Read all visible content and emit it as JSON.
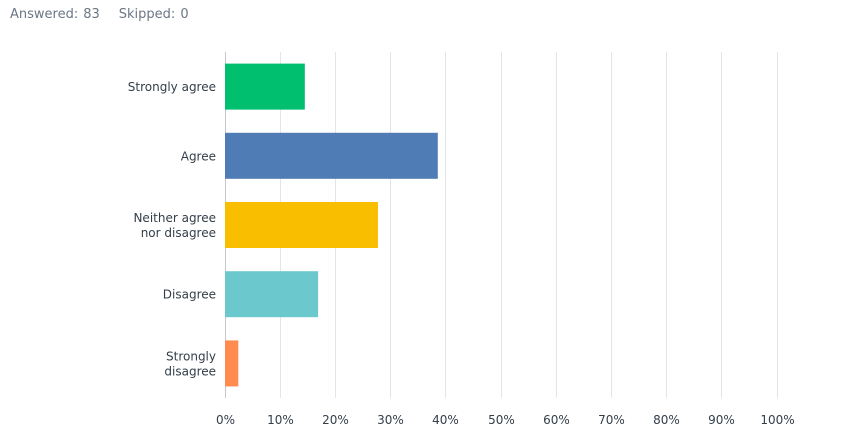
{
  "header": {
    "answered_label": "Answered:",
    "answered_count": "83",
    "skipped_label": "Skipped:",
    "skipped_count": "0"
  },
  "chart_data": {
    "type": "bar",
    "orientation": "horizontal",
    "title": "",
    "xlabel": "",
    "ylabel": "",
    "categories": [
      [
        "Strongly agree"
      ],
      [
        "Agree"
      ],
      [
        "Neither agree",
        "nor disagree"
      ],
      [
        "Disagree"
      ],
      [
        "Strongly",
        "disagree"
      ]
    ],
    "values": [
      14.46,
      38.55,
      27.71,
      16.87,
      2.41
    ],
    "colors": [
      "#00bf6f",
      "#507cb6",
      "#f9be00",
      "#6bc8cd",
      "#ff8b4f"
    ],
    "xlim": [
      0,
      100
    ],
    "xticks": [
      "0%",
      "10%",
      "20%",
      "30%",
      "40%",
      "50%",
      "60%",
      "70%",
      "80%",
      "90%",
      "100%"
    ],
    "grid": true,
    "legend": "none"
  }
}
